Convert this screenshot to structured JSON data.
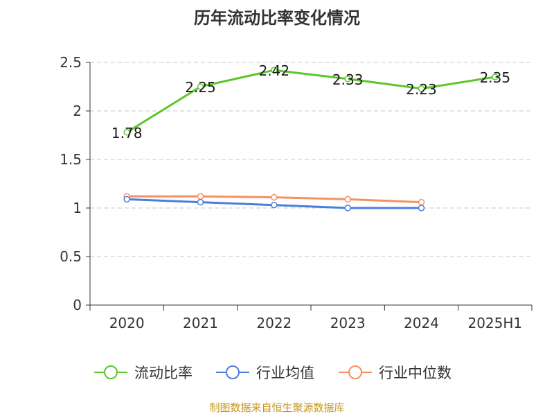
{
  "chart_data": {
    "type": "line",
    "title": "历年流动比率变化情况",
    "categories": [
      "2020",
      "2021",
      "2022",
      "2023",
      "2024",
      "2025H1"
    ],
    "ylim": [
      0,
      2.5
    ],
    "yticks": [
      "0",
      "0.5",
      "1",
      "1.5",
      "2",
      "2.5"
    ],
    "grid": true,
    "legend_position": "bottom",
    "series": [
      {
        "name": "流动比率",
        "color": "#5bc72b",
        "values": [
          1.78,
          2.25,
          2.42,
          2.33,
          2.23,
          2.35
        ],
        "labels": [
          "1.78",
          "2.25",
          "2.42",
          "2.33",
          "2.23",
          "2.35"
        ]
      },
      {
        "name": "行业均值",
        "color": "#4a7ede",
        "values": [
          1.09,
          1.06,
          1.03,
          1.0,
          1.0,
          null
        ]
      },
      {
        "name": "行业中位数",
        "color": "#f79060",
        "values": [
          1.12,
          1.12,
          1.11,
          1.09,
          1.06,
          null
        ]
      }
    ]
  },
  "source": {
    "text": "制图数据来自恒生聚源数据库",
    "color": "#c8961e"
  }
}
